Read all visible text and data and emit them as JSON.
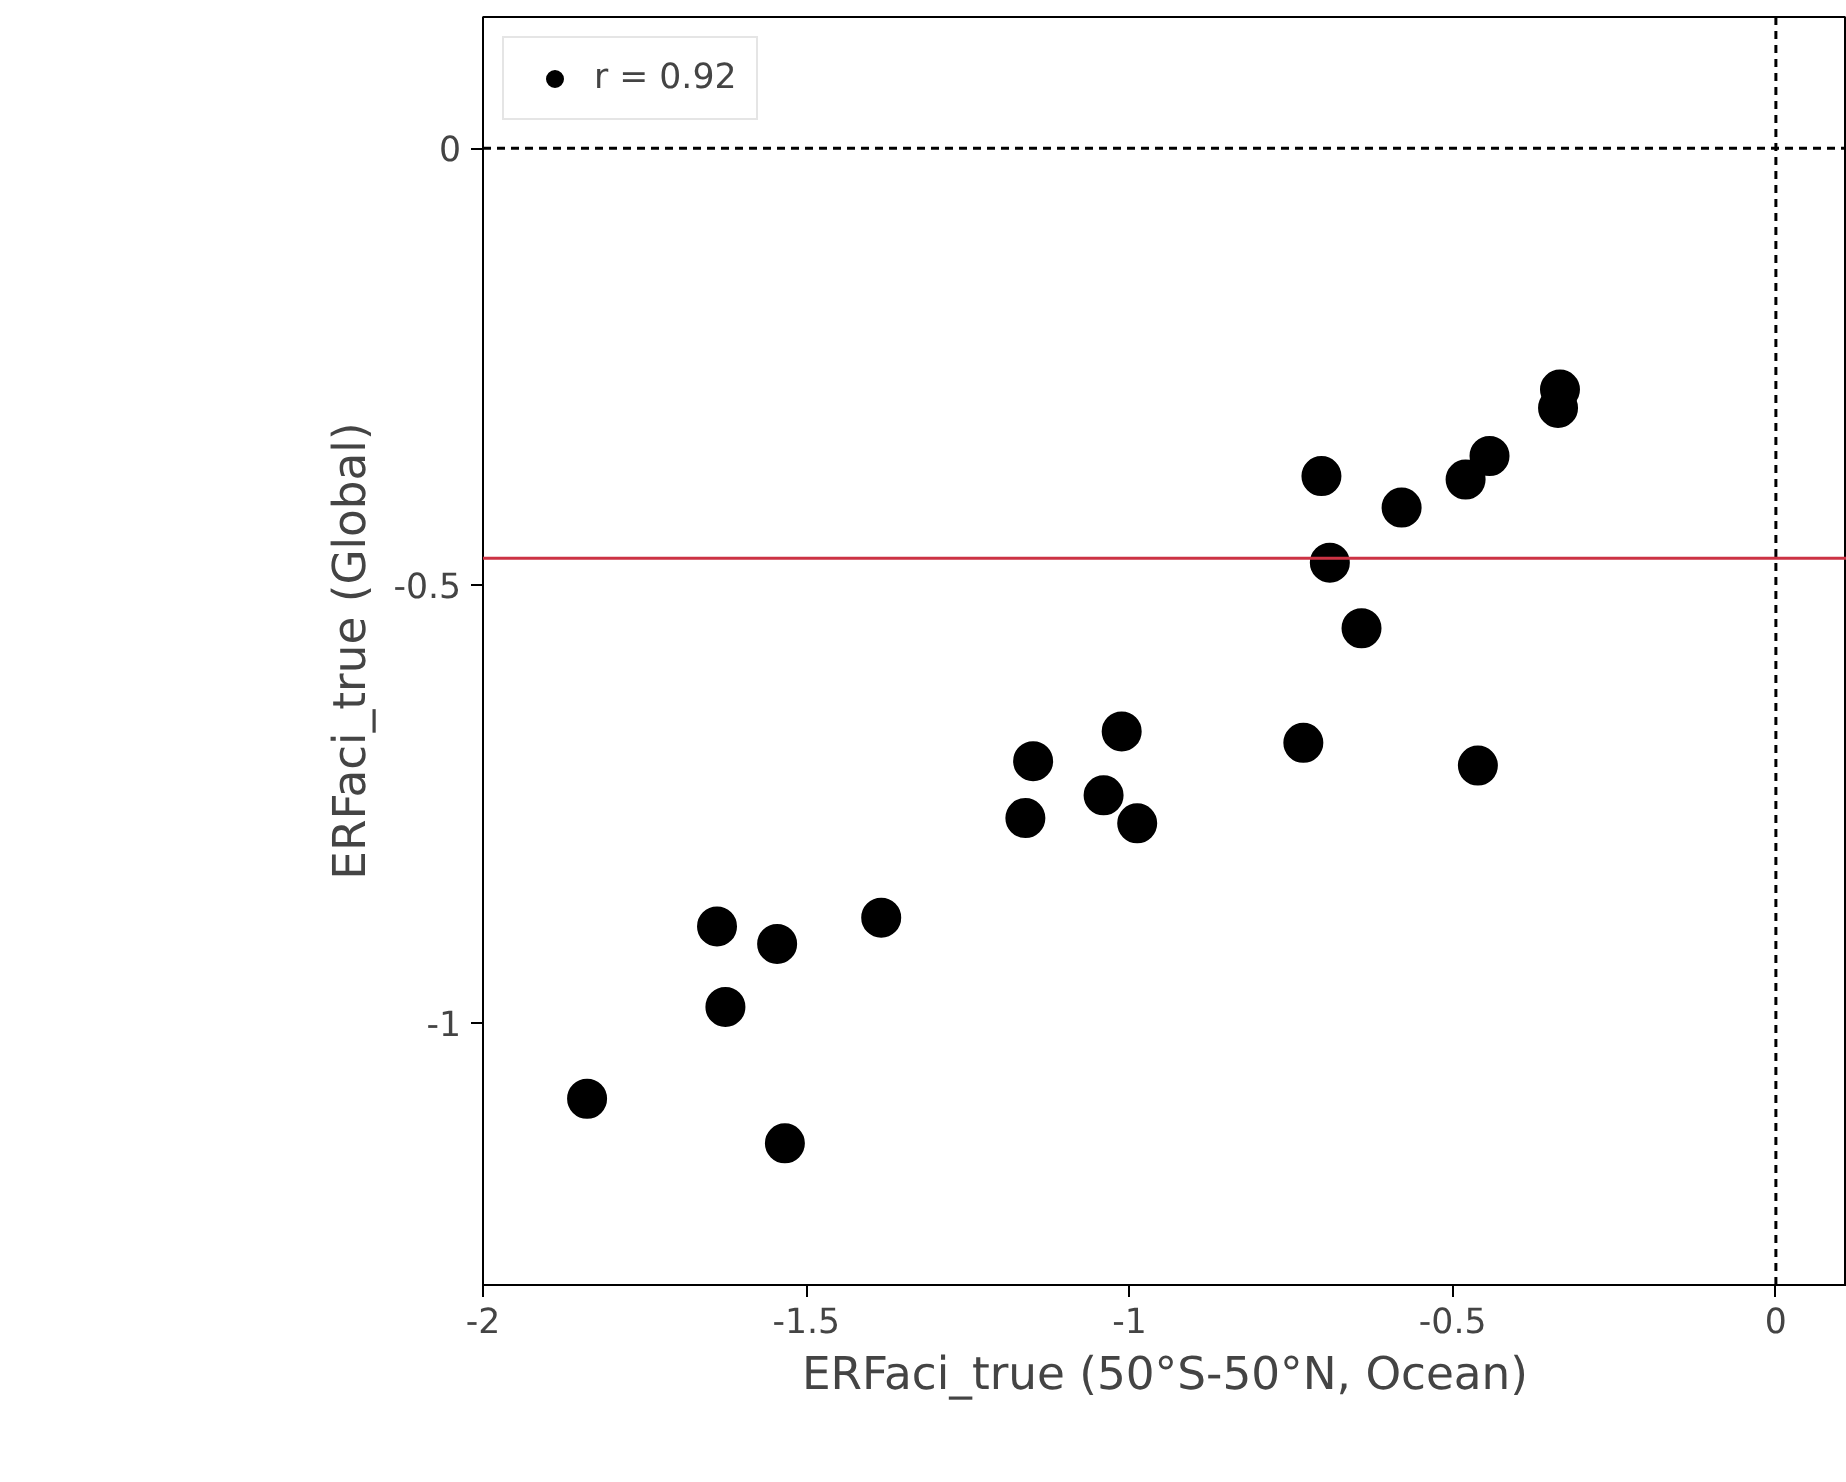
{
  "chart_data": {
    "type": "scatter",
    "xlabel": "ERFaci_true (50°S-50°N, Ocean)",
    "ylabel": "ERFaci_true (Global)",
    "x": [
      -0.334,
      -0.337,
      -0.443,
      -0.48,
      -0.703,
      -0.579,
      -0.69,
      -0.641,
      -1.012,
      -0.731,
      -0.461,
      -1.149,
      -1.04,
      -1.161,
      -0.988,
      -1.384,
      -1.638,
      -1.545,
      -1.625,
      -1.839,
      -1.533
    ],
    "series": [
      {
        "name": "r = 0.92",
        "color": "#000000",
        "values": [
          -0.276,
          -0.297,
          -0.352,
          -0.379,
          -0.375,
          -0.411,
          -0.474,
          -0.549,
          -0.667,
          -0.68,
          -0.706,
          -0.701,
          -0.74,
          -0.766,
          -0.772,
          -0.88,
          -0.89,
          -0.91,
          -0.982,
          -1.087,
          -1.138
        ]
      }
    ],
    "marker": "circle",
    "legend": "top left",
    "xlim": [
      -2,
      0.11
    ],
    "ylim": [
      -1.3,
      0.15
    ],
    "xticks": [
      -2,
      -1.5,
      -1,
      -0.5,
      0
    ],
    "yticks": [
      0,
      -0.5,
      -1
    ],
    "ref_lines": [
      {
        "axis": "y",
        "value": 0,
        "color": "#000000",
        "line_style": "dashed"
      },
      {
        "axis": "x",
        "value": 0,
        "color": "#000000",
        "line_style": "dashed"
      },
      {
        "axis": "y",
        "value": -0.469,
        "color": "#cc3344",
        "line_style": "solid"
      }
    ],
    "grid": false
  }
}
